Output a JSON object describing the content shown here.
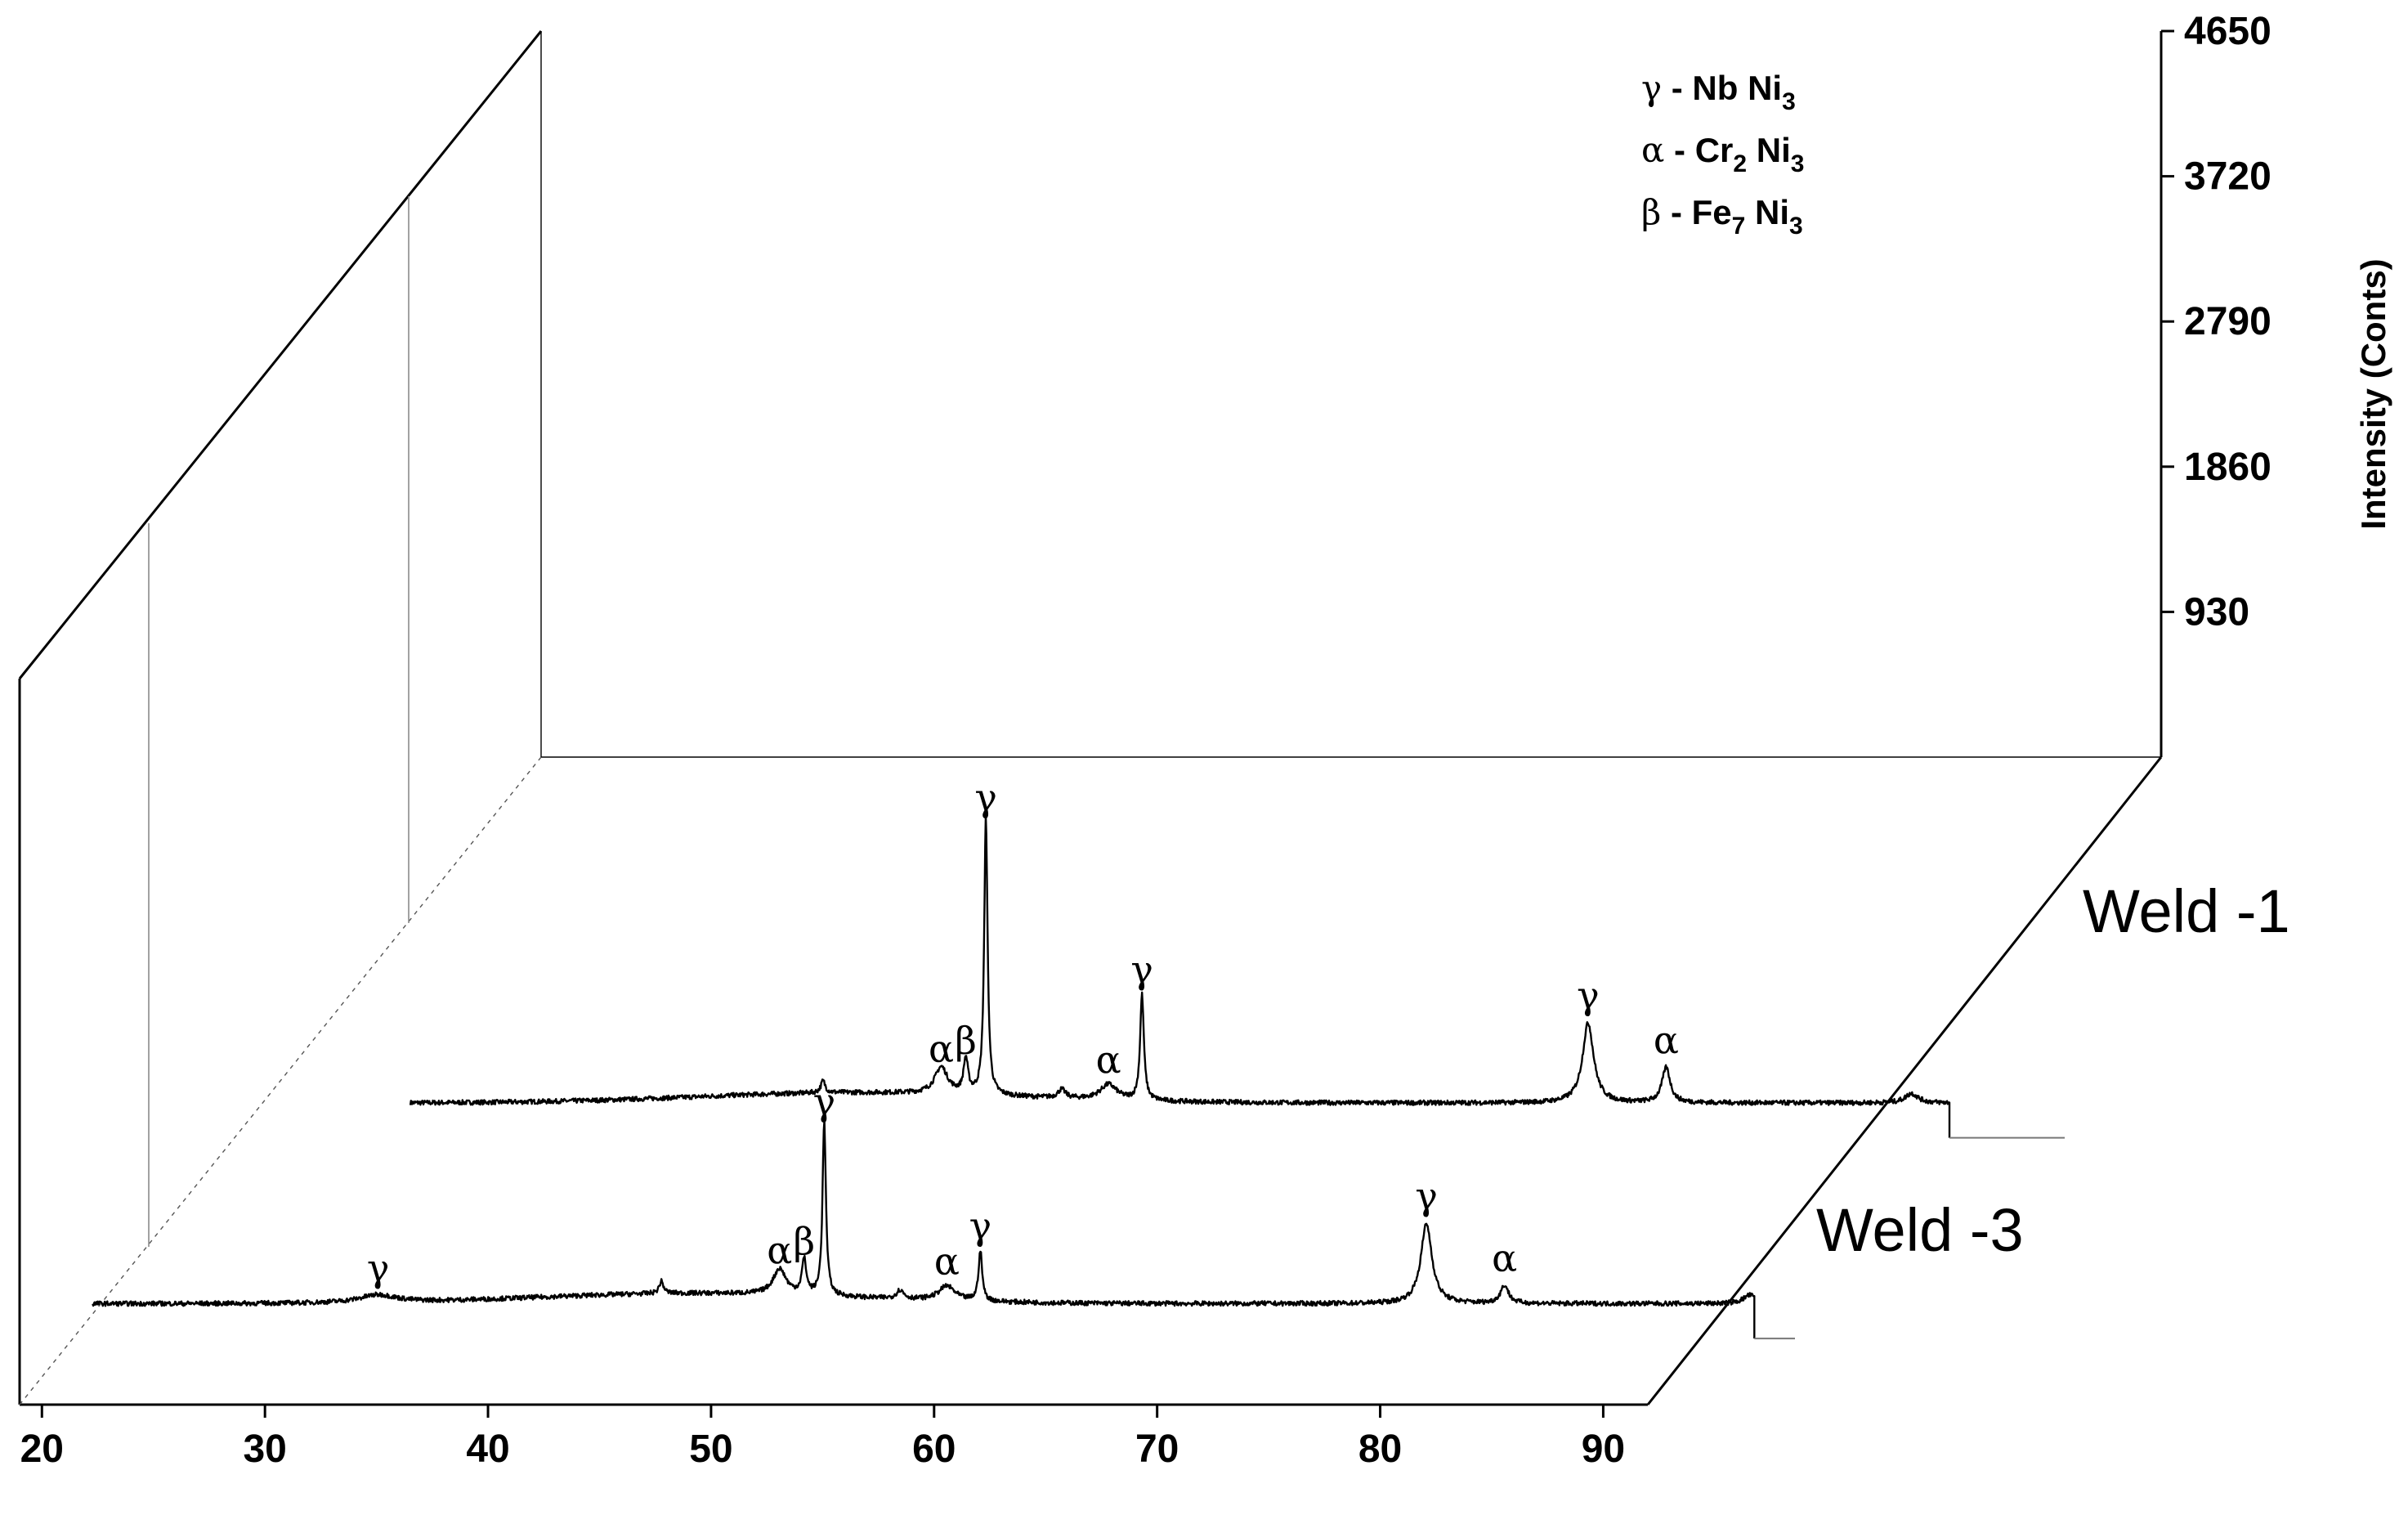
{
  "chart_data": {
    "type": "line",
    "title": "",
    "xlabel": "",
    "ylabel": "Intensity (Conts)",
    "xlim": [
      19,
      92
    ],
    "ylim": [
      0,
      4650
    ],
    "x_ticks": [
      "20",
      "30",
      "40",
      "50",
      "60",
      "70",
      "80",
      "90"
    ],
    "y_ticks": [
      "930",
      "1860",
      "2790",
      "3720",
      "4650"
    ],
    "legend": [
      {
        "symbol": "γ",
        "text": " - Nb Ni",
        "sub": "3",
        "text2": "",
        "sub2": ""
      },
      {
        "symbol": "α",
        "text": " - Cr",
        "sub": "2",
        "text2": " Ni",
        "sub2": "3"
      },
      {
        "symbol": "β",
        "text": " - Fe",
        "sub": "7",
        "text2": " Ni",
        "sub2": "3"
      }
    ],
    "legend_position": "top-right",
    "grid": false,
    "series": [
      {
        "name": "Weld -1",
        "x_range": [
          26,
          95
        ],
        "baseline": 120,
        "peaks": [
          {
            "x": 44.5,
            "y": 260,
            "w": 0.12,
            "label": ""
          },
          {
            "x": 49.8,
            "y": 430,
            "w": 0.35,
            "label": "α"
          },
          {
            "x": 50.9,
            "y": 520,
            "w": 0.12,
            "label": "β"
          },
          {
            "x": 51.8,
            "y": 3350,
            "w": 0.09,
            "label": "γ"
          },
          {
            "x": 55.2,
            "y": 220,
            "w": 0.2,
            "label": ""
          },
          {
            "x": 57.3,
            "y": 300,
            "w": 0.45,
            "label": "α"
          },
          {
            "x": 58.8,
            "y": 1350,
            "w": 0.1,
            "label": "γ"
          },
          {
            "x": 78.8,
            "y": 1050,
            "w": 0.3,
            "label": "γ"
          },
          {
            "x": 82.3,
            "y": 530,
            "w": 0.22,
            "label": "α"
          },
          {
            "x": 93.3,
            "y": 230,
            "w": 0.35,
            "label": ""
          }
        ]
      },
      {
        "name": "Weld -3",
        "x_range": [
          19,
          93.5
        ],
        "baseline": 120,
        "peaks": [
          {
            "x": 31.8,
            "y": 210,
            "w": 1.0,
            "label": "γ"
          },
          {
            "x": 44.5,
            "y": 260,
            "w": 0.12,
            "label": ""
          },
          {
            "x": 49.8,
            "y": 420,
            "w": 0.35,
            "label": "α"
          },
          {
            "x": 50.9,
            "y": 520,
            "w": 0.12,
            "label": "β"
          },
          {
            "x": 51.8,
            "y": 2150,
            "w": 0.09,
            "label": "γ"
          },
          {
            "x": 55.2,
            "y": 220,
            "w": 0.2,
            "label": ""
          },
          {
            "x": 57.3,
            "y": 290,
            "w": 0.45,
            "label": "α"
          },
          {
            "x": 58.8,
            "y": 700,
            "w": 0.1,
            "label": "γ"
          },
          {
            "x": 78.8,
            "y": 1050,
            "w": 0.3,
            "label": "γ"
          },
          {
            "x": 82.3,
            "y": 330,
            "w": 0.22,
            "label": "α"
          },
          {
            "x": 93.3,
            "y": 220,
            "w": 0.35,
            "label": ""
          }
        ]
      }
    ]
  }
}
